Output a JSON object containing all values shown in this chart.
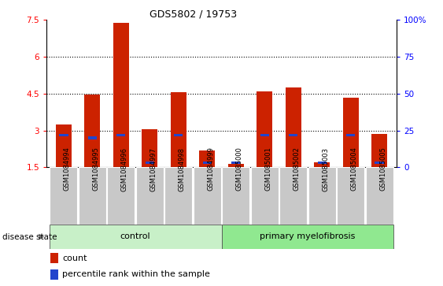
{
  "title": "GDS5802 / 19753",
  "samples": [
    "GSM1084994",
    "GSM1084995",
    "GSM1084996",
    "GSM1084997",
    "GSM1084998",
    "GSM1084999",
    "GSM1085000",
    "GSM1085001",
    "GSM1085002",
    "GSM1085003",
    "GSM1085004",
    "GSM1085005"
  ],
  "count_values": [
    3.25,
    4.48,
    7.4,
    3.05,
    4.55,
    2.2,
    1.65,
    4.6,
    4.75,
    1.7,
    4.35,
    2.85
  ],
  "percentile_values": [
    22,
    20,
    22,
    3,
    22,
    3,
    3,
    22,
    22,
    3,
    22,
    3
  ],
  "y_min": 1.5,
  "y_max": 7.5,
  "y_ticks": [
    1.5,
    3.0,
    4.5,
    6.0,
    7.5
  ],
  "y_tick_labels": [
    "1.5",
    "3",
    "4.5",
    "6",
    "7.5"
  ],
  "y2_ticks": [
    0,
    25,
    50,
    75,
    100
  ],
  "y2_tick_labels": [
    "0",
    "25",
    "50",
    "75",
    "100%"
  ],
  "bar_color": "#cc2200",
  "percentile_color": "#2244cc",
  "control_indices": [
    0,
    1,
    2,
    3,
    4,
    5
  ],
  "disease_indices": [
    6,
    7,
    8,
    9,
    10,
    11
  ],
  "control_label": "control",
  "disease_label": "primary myelofibrosis",
  "disease_state_label": "disease state",
  "legend_count": "count",
  "legend_percentile": "percentile rank within the sample",
  "bar_width": 0.55,
  "plot_bg_color": "#ffffff",
  "tick_label_bg": "#c8c8c8",
  "control_color": "#c8f0c8",
  "disease_color": "#90e890",
  "grid_color": "#000000"
}
